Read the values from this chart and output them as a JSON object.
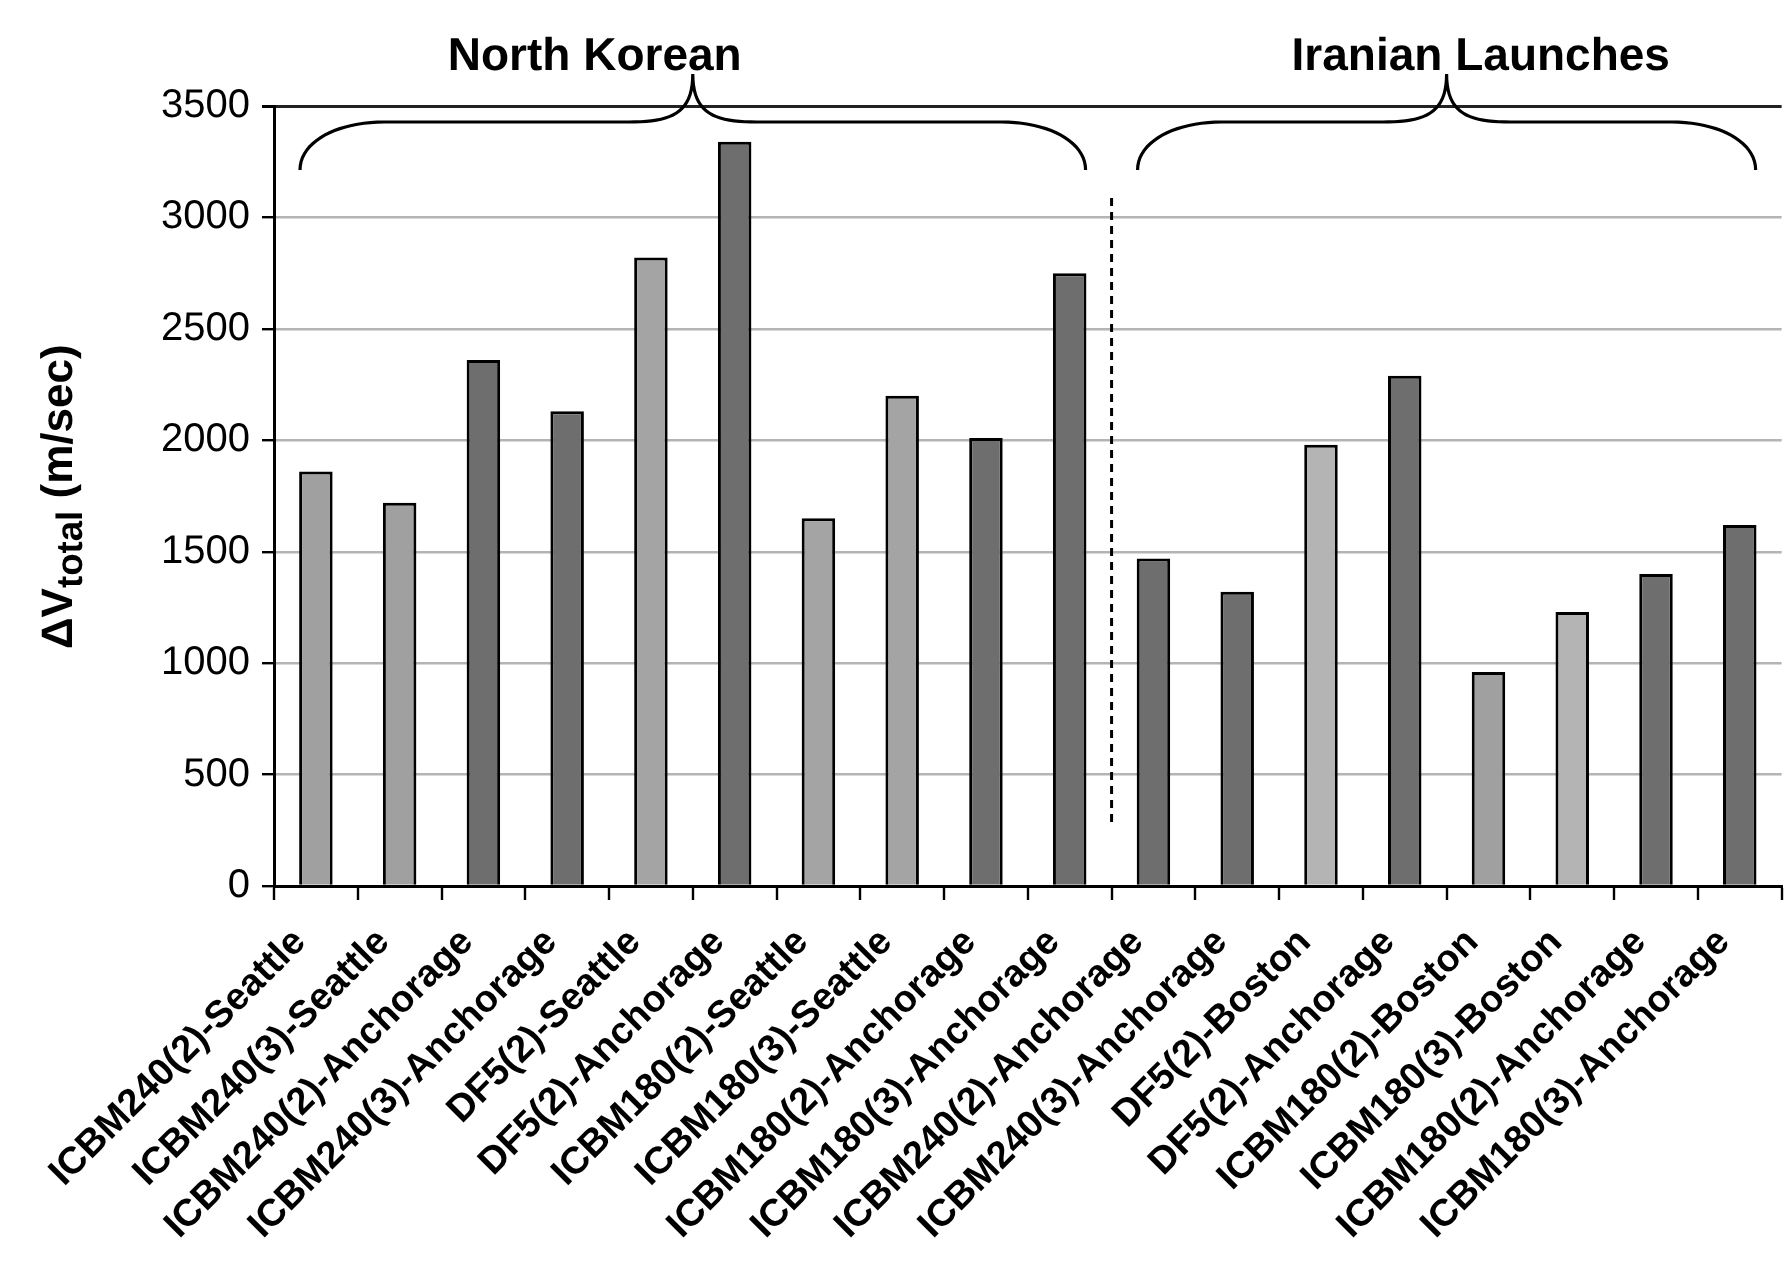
{
  "chart_data": {
    "type": "bar",
    "categories": [
      "ICBM240(2)-Seattle",
      "ICBM240(3)-Seattle",
      "ICBM240(2)-Anchorage",
      "ICBM240(3)-Anchorage",
      "DF5(2)-Seattle",
      "DF5(2)-Anchorage",
      "ICBM180(2)-Seattle",
      "ICBM180(3)-Seattle",
      "ICBM180(2)-Anchorage",
      "ICBM180(3)-Anchorage",
      "ICBM240(2)-Anchorage",
      "ICBM240(3)-Anchorage",
      "DF5(2)-Boston",
      "DF5(2)-Anchorage",
      "ICBM180(2)-Boston",
      "ICBM180(3)-Boston",
      "ICBM180(2)-Anchorage",
      "ICBM180(3)-Anchorage"
    ],
    "values": [
      1860,
      1720,
      2360,
      2130,
      2820,
      3340,
      1650,
      2200,
      2010,
      2750,
      1470,
      1320,
      1980,
      2290,
      960,
      1230,
      1400,
      1620
    ],
    "colors": [
      "#a0a0a0",
      "#a0a0a0",
      "#6e6e6e",
      "#6e6e6e",
      "#a4a4a4",
      "#6e6e6e",
      "#a4a4a4",
      "#a4a4a4",
      "#6e6e6e",
      "#6e6e6e",
      "#6e6e6e",
      "#6e6e6e",
      "#b4b4b4",
      "#6e6e6e",
      "#a0a0a0",
      "#b4b4b4",
      "#6e6e6e",
      "#6e6e6e"
    ],
    "ylabel": "ΔV$_{total}$ (m/sec)",
    "annotations": [
      "North Korean",
      "Iranian Launches"
    ],
    "ylim": [
      0,
      3500
    ],
    "yticks": [
      0,
      500,
      1000,
      1500,
      2000,
      2500,
      3000,
      3500
    ],
    "grid": "y"
  }
}
